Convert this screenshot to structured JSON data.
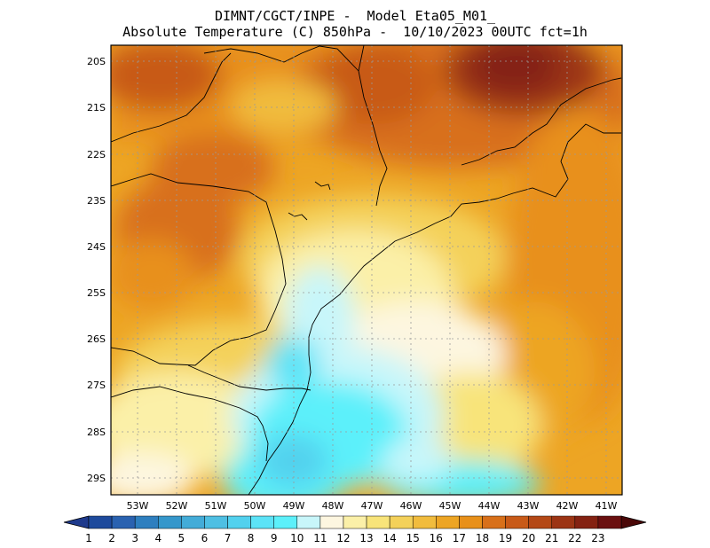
{
  "title": {
    "line1": "DIMNT/CGCT/INPE -  Model Eta05_M01_",
    "line2": "Absolute Temperature (C) 850hPa -  10/10/2023 00UTC fct=1h"
  },
  "variable": "Absolute Temperature (C)",
  "level": "850hPa",
  "run": "10/10/2023 00UTC",
  "forecast": "fct=1h",
  "lat_labels": [
    "20S",
    "21S",
    "22S",
    "23S",
    "24S",
    "25S",
    "26S",
    "27S",
    "28S",
    "29S"
  ],
  "lon_labels": [
    "53W",
    "52W",
    "51W",
    "50W",
    "49W",
    "48W",
    "47W",
    "46W",
    "45W",
    "44W",
    "43W",
    "42W",
    "41W"
  ],
  "colorbar": {
    "labels": [
      "1",
      "2",
      "3",
      "4",
      "5",
      "6",
      "7",
      "8",
      "9",
      "10",
      "11",
      "12",
      "13",
      "14",
      "15",
      "16",
      "17",
      "18",
      "19",
      "20",
      "21",
      "22",
      "23"
    ],
    "colors": [
      "#1e4a9c",
      "#2a62b0",
      "#2e7fbf",
      "#3597cb",
      "#43acd8",
      "#4ebfe3",
      "#52d1ee",
      "#5ce3f7",
      "#5cf0fa",
      "#c8f6fa",
      "#fdf6e0",
      "#fbf0a8",
      "#f8e47a",
      "#f4d15a",
      "#f1bc3d",
      "#eda524",
      "#e8901a",
      "#d8701a",
      "#c85a18",
      "#b44816",
      "#9c3414",
      "#842212",
      "#6a1010"
    ],
    "low_arrow_color": "#1e3a8c",
    "high_arrow_color": "#4a0808"
  },
  "chart_data": {
    "type": "heatmap",
    "field": "temperature_850hPa_C",
    "lon_range": [
      -53.9,
      -40.5
    ],
    "lat_range": [
      -29.4,
      -19.7
    ],
    "grid": true,
    "approx_field_description_values": [
      {
        "region": "north-east",
        "lon": -43.5,
        "lat": -20.3,
        "value": 22.5
      },
      {
        "region": "north",
        "lon": -46.5,
        "lat": -21.5,
        "value": 19.5
      },
      {
        "region": "north-west",
        "lon": -52.5,
        "lat": -21.0,
        "value": 17.5
      },
      {
        "region": "west",
        "lon": -52.5,
        "lat": -24.0,
        "value": 18.5
      },
      {
        "region": "center",
        "lon": -47.5,
        "lat": -24.2,
        "value": 13.5
      },
      {
        "region": "coast-south",
        "lon": -48.8,
        "lat": -27.5,
        "value": 9.5
      },
      {
        "region": "south",
        "lon": -49.5,
        "lat": -29.0,
        "value": 9.5
      },
      {
        "region": "ocean-east",
        "lon": -42.0,
        "lat": -27.0,
        "value": 17.0
      },
      {
        "region": "south-west",
        "lon": -53.5,
        "lat": -28.5,
        "value": 12.5
      }
    ]
  }
}
